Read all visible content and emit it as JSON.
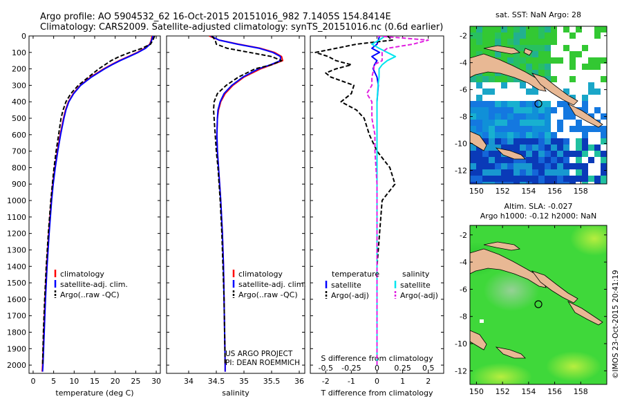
{
  "header": {
    "line1": "Argo profile: AO 5904532_62 16-Oct-2015 20151016_982 7.1405S 154.8414E",
    "line2": "Climatology: CARS2009. Satellite-adjusted climatology: synTS_20151016.nc (0.6d earlier)"
  },
  "credit": "©IMOS 23-Oct-2015 20:41:19",
  "project": {
    "line1": "US ARGO PROJECT",
    "line2": "PI: DEAN ROEMMICH"
  },
  "colors": {
    "climatology": "#ff0000",
    "satellite": "#0000ff",
    "argo": "#000000",
    "salinity_satellite": "#00e5ee",
    "salinity_argo": "#e020e0",
    "land": "#e8b894",
    "blank": "#ffffff"
  },
  "depth_axis": {
    "range": [
      0,
      2050
    ],
    "ticks": [
      0,
      100,
      200,
      300,
      400,
      500,
      600,
      700,
      800,
      900,
      1000,
      1100,
      1200,
      1300,
      1400,
      1500,
      1600,
      1700,
      1800,
      1900,
      2000
    ]
  },
  "chart_data": [
    {
      "type": "line",
      "panel": "temperature",
      "xlabel": "temperature (deg C)",
      "xlim": [
        -1,
        31
      ],
      "xticks": [
        0,
        5,
        10,
        15,
        20,
        25,
        30
      ],
      "ylim": [
        0,
        2050
      ],
      "y_inverted": true,
      "legend": [
        "climatology",
        "satellite-adj. clim.",
        "Argo(..raw -QC)"
      ],
      "legend_placement": "lower-center",
      "series": [
        {
          "name": "climatology",
          "color": "#ff0000",
          "style": "solid",
          "depth": [
            0,
            25,
            50,
            75,
            100,
            125,
            150,
            175,
            200,
            250,
            300,
            350,
            400,
            450,
            500,
            600,
            700,
            800,
            900,
            1000,
            1200,
            1400,
            1600,
            1800,
            2000,
            2040
          ],
          "values": [
            29.0,
            28.8,
            28.4,
            27.2,
            25.4,
            23.2,
            21.0,
            19.0,
            17.2,
            14.0,
            11.5,
            9.8,
            8.6,
            7.9,
            7.4,
            6.6,
            5.9,
            5.3,
            4.8,
            4.4,
            3.8,
            3.3,
            2.9,
            2.6,
            2.3,
            2.2
          ]
        },
        {
          "name": "satellite-adj. clim.",
          "color": "#0000ff",
          "style": "solid",
          "depth": [
            0,
            25,
            50,
            75,
            100,
            125,
            150,
            175,
            200,
            250,
            300,
            350,
            400,
            450,
            500,
            600,
            700,
            800,
            900,
            1000,
            1200,
            1400,
            1600,
            1800,
            2000,
            2040
          ],
          "values": [
            29.2,
            28.9,
            28.5,
            27.4,
            25.6,
            23.4,
            21.2,
            19.2,
            17.4,
            14.2,
            11.6,
            9.9,
            8.7,
            8.0,
            7.5,
            6.7,
            6.0,
            5.4,
            4.9,
            4.5,
            3.9,
            3.4,
            3.0,
            2.7,
            2.4,
            2.3
          ]
        },
        {
          "name": "Argo(..raw -QC)",
          "color": "#000000",
          "style": "dashed",
          "depth": [
            0,
            25,
            50,
            75,
            100,
            125,
            150,
            175,
            200,
            250,
            300,
            350,
            400,
            450,
            500,
            600,
            700,
            800,
            900,
            1000,
            1200,
            1400,
            1600,
            1800,
            2000
          ],
          "values": [
            29.6,
            29.2,
            28.6,
            26.5,
            23.6,
            21.0,
            19.0,
            17.5,
            16.0,
            13.5,
            11.0,
            9.2,
            8.0,
            7.3,
            6.8,
            6.2,
            5.6,
            5.1,
            4.7,
            4.3,
            3.7,
            3.2,
            2.8,
            2.5,
            2.3
          ]
        }
      ]
    },
    {
      "type": "line",
      "panel": "salinity",
      "xlabel": "salinity",
      "xlim": [
        33.6,
        36.1
      ],
      "xticks": [
        34,
        34.5,
        35,
        35.5,
        36
      ],
      "ylim": [
        0,
        2050
      ],
      "y_inverted": true,
      "legend": [
        "climatology",
        "satellite-adj. clim.",
        "Argo(..raw -QC)"
      ],
      "legend_placement": "lower-right",
      "series": [
        {
          "name": "climatology",
          "color": "#ff0000",
          "style": "solid",
          "depth": [
            0,
            25,
            50,
            75,
            100,
            125,
            150,
            175,
            200,
            250,
            300,
            350,
            400,
            450,
            500,
            600,
            700,
            800,
            900,
            1000,
            1200,
            1400,
            1600,
            1800,
            2000,
            2040
          ],
          "values": [
            34.37,
            34.55,
            34.9,
            35.3,
            35.55,
            35.68,
            35.7,
            35.5,
            35.3,
            35.0,
            34.8,
            34.66,
            34.58,
            34.54,
            34.52,
            34.51,
            34.52,
            34.54,
            34.56,
            34.58,
            34.61,
            34.63,
            34.64,
            34.65,
            34.66,
            34.66
          ]
        },
        {
          "name": "satellite-adj. clim.",
          "color": "#0000ff",
          "style": "solid",
          "depth": [
            0,
            25,
            50,
            75,
            100,
            125,
            150,
            175,
            200,
            250,
            300,
            350,
            400,
            450,
            500,
            600,
            700,
            800,
            900,
            1000,
            1200,
            1400,
            1600,
            1800,
            2000,
            2040
          ],
          "values": [
            34.4,
            34.55,
            34.88,
            35.28,
            35.52,
            35.66,
            35.66,
            35.48,
            35.26,
            34.98,
            34.78,
            34.64,
            34.57,
            34.53,
            34.52,
            34.51,
            34.52,
            34.54,
            34.56,
            34.58,
            34.61,
            34.63,
            34.64,
            34.65,
            34.66,
            34.66
          ]
        },
        {
          "name": "Argo(..raw -QC)",
          "color": "#000000",
          "style": "dashed",
          "depth": [
            0,
            25,
            50,
            75,
            100,
            125,
            150,
            175,
            200,
            250,
            300,
            350,
            400,
            450,
            500,
            600,
            700,
            800,
            900,
            1000,
            1200,
            1400,
            1600,
            1800,
            2000
          ],
          "values": [
            34.42,
            34.48,
            34.5,
            34.7,
            35.1,
            35.5,
            35.68,
            35.5,
            35.2,
            34.9,
            34.68,
            34.52,
            34.46,
            34.45,
            34.46,
            34.48,
            34.5,
            34.53,
            34.55,
            34.57,
            34.6,
            34.62,
            34.64,
            34.65,
            34.66
          ]
        }
      ]
    },
    {
      "type": "line",
      "panel": "difference",
      "xlabel": "T difference from climatology",
      "xlabel_top": "S difference from climatology",
      "xlim": [
        -2.6,
        2.6
      ],
      "xticks": [
        -2,
        -1,
        0,
        1,
        2
      ],
      "top_ticks": [
        -0.5,
        -0.25,
        0,
        0.25,
        0.5
      ],
      "ylim": [
        0,
        2050
      ],
      "y_inverted": true,
      "legend_groups": {
        "left": "temperature",
        "right": "salinity"
      },
      "legend": [
        "satellite",
        "Argo(-adj)",
        "satellite",
        "Argo(-adj)"
      ],
      "legend_placement": "lower-center",
      "series": [
        {
          "name": "satellite",
          "group": "temperature",
          "color": "#0000ff",
          "style": "solid",
          "depth": [
            0,
            25,
            50,
            75,
            100,
            125,
            150,
            175,
            200,
            250,
            300,
            400,
            500,
            700,
            1000,
            1500,
            2000
          ],
          "values": [
            0.1,
            0.05,
            0.0,
            -0.2,
            0.1,
            -0.2,
            0.0,
            -0.1,
            -0.15,
            0.0,
            0.05,
            0.0,
            0.0,
            0.0,
            0.0,
            0.0,
            0.0
          ]
        },
        {
          "name": "Argo(-adj)",
          "group": "temperature",
          "color": "#000000",
          "style": "dashed",
          "depth": [
            0,
            25,
            50,
            75,
            100,
            125,
            150,
            175,
            200,
            225,
            250,
            300,
            350,
            400,
            450,
            500,
            600,
            700,
            800,
            900,
            1000,
            1200,
            1400,
            1600,
            1800,
            2000
          ],
          "values": [
            0.4,
            0.6,
            -0.8,
            -1.6,
            -2.4,
            -1.9,
            -1.6,
            -1.0,
            -1.6,
            -2.0,
            -1.8,
            -0.9,
            -1.0,
            -1.4,
            -0.8,
            -0.5,
            -0.3,
            0.0,
            0.5,
            0.7,
            0.2,
            0.1,
            0.0,
            0.0,
            0.0,
            0.0
          ]
        },
        {
          "name": "satellite",
          "group": "salinity",
          "color": "#00e5ee",
          "style": "solid",
          "depth": [
            0,
            25,
            50,
            75,
            100,
            125,
            150,
            175,
            200,
            250,
            300,
            400,
            500,
            700,
            1000,
            1500,
            2000
          ],
          "values": [
            0.08,
            0.02,
            -0.05,
            0.02,
            0.1,
            0.18,
            0.1,
            0.05,
            0.02,
            0.02,
            0.01,
            0.0,
            0.0,
            0.0,
            0.0,
            0.0,
            0.0
          ]
        },
        {
          "name": "Argo(-adj)",
          "group": "salinity",
          "color": "#e020e0",
          "style": "dashed",
          "depth": [
            0,
            25,
            50,
            75,
            100,
            125,
            150,
            175,
            200,
            250,
            300,
            350,
            400,
            500,
            600,
            700,
            800,
            900,
            1000,
            1200,
            1400,
            1600,
            1800,
            2000
          ],
          "values": [
            0.0,
            0.5,
            0.35,
            0.1,
            0.05,
            0.05,
            0.05,
            -0.03,
            -0.03,
            -0.05,
            -0.05,
            -0.1,
            -0.05,
            -0.05,
            -0.02,
            -0.02,
            -0.01,
            0.0,
            0.0,
            0.0,
            0.0,
            0.0,
            0.0,
            0.0
          ]
        }
      ]
    },
    {
      "type": "heatmap",
      "panel": "sst_map",
      "title": "sat. SST: NaN Argo: 28",
      "xlim": [
        149.5,
        160
      ],
      "xticks": [
        150,
        152,
        154,
        156,
        158
      ],
      "ylim": [
        -13,
        -1.3
      ],
      "yticks": [
        -2,
        -4,
        -6,
        -8,
        -10,
        -12
      ],
      "argo_position": [
        154.84,
        -7.14
      ]
    },
    {
      "type": "heatmap",
      "panel": "sla_map",
      "title": "Altim. SLA: -0.027",
      "subtitle": "Argo h1000: -0.12 h2000: NaN",
      "xlim": [
        149.5,
        160
      ],
      "xticks": [
        150,
        152,
        154,
        156,
        158
      ],
      "ylim": [
        -13,
        -1.3
      ],
      "yticks": [
        -2,
        -4,
        -6,
        -8,
        -10,
        -12
      ],
      "argo_position": [
        154.84,
        -7.14
      ]
    }
  ]
}
